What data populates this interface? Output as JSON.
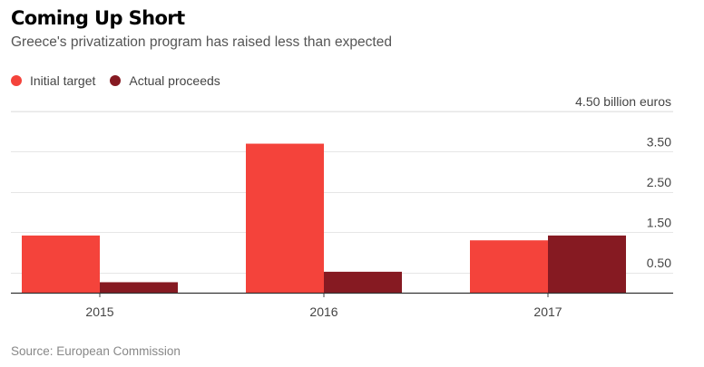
{
  "header": {
    "title": "Coming Up Short",
    "subtitle": "Greece's privatization program has raised less than expected"
  },
  "legend": {
    "items": [
      {
        "label": "Initial target",
        "color": "#f4433b"
      },
      {
        "label": "Actual proceeds",
        "color": "#861a22"
      }
    ]
  },
  "source": "Source: European Commission",
  "chart_data": {
    "type": "bar",
    "title": "Coming Up Short",
    "subtitle": "Greece's privatization program has raised less than expected",
    "categories": [
      "2015",
      "2016",
      "2017"
    ],
    "series": [
      {
        "name": "Initial target",
        "color": "#f4433b",
        "values": [
          1.42,
          3.7,
          1.3
        ]
      },
      {
        "name": "Actual proceeds",
        "color": "#861a22",
        "values": [
          0.26,
          0.52,
          1.42
        ]
      }
    ],
    "yticks": [
      {
        "value": 0.5,
        "label": "0.50"
      },
      {
        "value": 1.5,
        "label": "1.50"
      },
      {
        "value": 2.5,
        "label": "2.50"
      },
      {
        "value": 3.5,
        "label": "3.50"
      },
      {
        "value": 4.5,
        "label": "4.50 billion euros"
      }
    ],
    "ylim": [
      0,
      4.5
    ],
    "xlabel": "",
    "ylabel": "",
    "grid": true,
    "legend_position": "top-left"
  }
}
